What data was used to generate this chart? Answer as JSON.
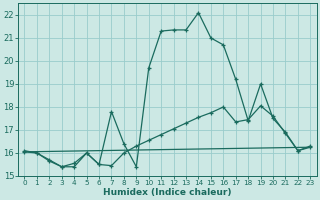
{
  "xlabel": "Humidex (Indice chaleur)",
  "bg_color": "#cce8e4",
  "grid_color": "#99cccc",
  "line_color": "#1a6b5e",
  "xlim": [
    -0.5,
    23.5
  ],
  "ylim": [
    15.0,
    22.5
  ],
  "yticks": [
    15,
    16,
    17,
    18,
    19,
    20,
    21,
    22
  ],
  "xticks": [
    0,
    1,
    2,
    3,
    4,
    5,
    6,
    7,
    8,
    9,
    10,
    11,
    12,
    13,
    14,
    15,
    16,
    17,
    18,
    19,
    20,
    21,
    22,
    23
  ],
  "series1_x": [
    0,
    1,
    2,
    3,
    4,
    5,
    6,
    7,
    8,
    9,
    10,
    11,
    12,
    13,
    14,
    15,
    16,
    17,
    18,
    19,
    20,
    21,
    22,
    23
  ],
  "series1_y": [
    16.1,
    16.0,
    15.7,
    15.4,
    15.4,
    16.0,
    15.5,
    17.8,
    16.4,
    15.4,
    19.7,
    21.3,
    21.35,
    21.35,
    22.1,
    21.0,
    20.7,
    19.2,
    17.4,
    19.0,
    17.5,
    16.9,
    16.1,
    16.3
  ],
  "series2_x": [
    0,
    1,
    2,
    3,
    4,
    5,
    6,
    7,
    8,
    9,
    10,
    11,
    12,
    13,
    14,
    15,
    16,
    17,
    18,
    19,
    20,
    21,
    22,
    23
  ],
  "series2_y": [
    16.05,
    16.0,
    15.65,
    15.4,
    15.55,
    16.0,
    15.5,
    15.45,
    16.0,
    16.3,
    16.55,
    16.8,
    17.05,
    17.3,
    17.55,
    17.75,
    18.0,
    17.35,
    17.45,
    18.05,
    17.6,
    16.85,
    16.1,
    16.25
  ],
  "series3_x": [
    0,
    23
  ],
  "series3_y": [
    16.05,
    16.25
  ]
}
